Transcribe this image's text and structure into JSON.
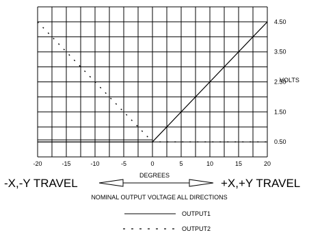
{
  "chart_data": {
    "type": "line",
    "xlim": [
      -20,
      20
    ],
    "ylim": [
      0,
      5
    ],
    "x_tick_labels": [
      "-20",
      "-15",
      "-10",
      "-5",
      "0",
      "5",
      "10",
      "15",
      "20"
    ],
    "y_tick_labels": [
      "0.50",
      "1.50",
      "2.50",
      "3.50",
      "4.50"
    ],
    "y_tick_values": [
      0.5,
      1.5,
      2.5,
      3.5,
      4.5
    ],
    "xlabel": "DEGREES",
    "ylabel": "VOLTS",
    "grid": true,
    "series": [
      {
        "name": "OUTPUT1",
        "style": "solid",
        "x": [
          -20,
          0,
          20
        ],
        "y": [
          0.5,
          0.5,
          4.5
        ]
      },
      {
        "name": "OUTPUT2",
        "style": "dashed",
        "x": [
          -20,
          0,
          20
        ],
        "y": [
          4.5,
          0.5,
          0.5
        ]
      }
    ],
    "left_annotation": "-X,-Y TRAVEL",
    "right_annotation": "+X,+Y TRAVEL",
    "caption": "NOMINAL OUTPUT VOLTAGE ALL DIRECTIONS"
  }
}
